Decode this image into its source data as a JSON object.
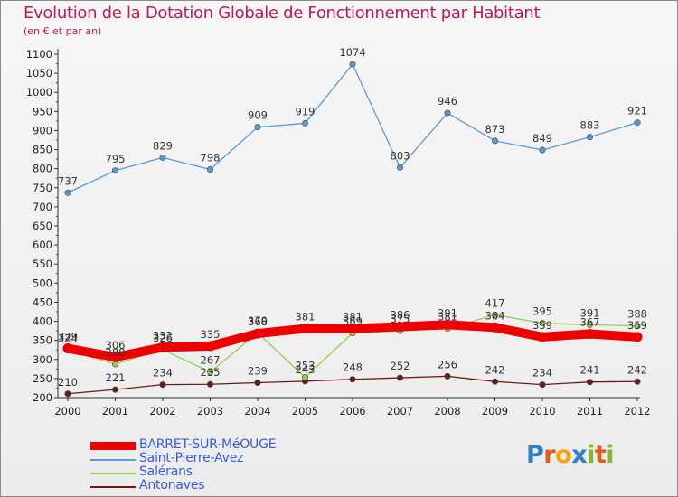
{
  "title": "Evolution de la Dotation Globale de Fonctionnement par Habitant",
  "subtitle": "(en € et par an)",
  "brand": {
    "letters": [
      "P",
      "r",
      "o",
      "x",
      "i",
      "t",
      "i"
    ],
    "colors": [
      "#2f80c8",
      "#e35a1d",
      "#f3a516",
      "#2f80c8",
      "#86b82d",
      "#e35a1d",
      "#86b82d"
    ]
  },
  "chart_data": {
    "type": "line",
    "title": "Evolution de la Dotation Globale de Fonctionnement par Habitant",
    "ylabel": "(en € et par an)",
    "xlabel": "",
    "ylim": [
      200,
      1100
    ],
    "ytick_step": 50,
    "grid": false,
    "legend_position": "bottom-left",
    "x": [
      "2000",
      "2001",
      "2002",
      "2003",
      "2004",
      "2005",
      "2006",
      "2007",
      "2008",
      "2009",
      "2010",
      "2011",
      "2012"
    ],
    "series": [
      {
        "name": "BARRET-SUR-MéOUGE",
        "values": [
          329,
          306,
          332,
          335,
          368,
          381,
          381,
          386,
          391,
          384,
          359,
          367,
          359
        ],
        "color": "#ee0000",
        "style": "thick"
      },
      {
        "name": "Saint-Pierre-Avez",
        "values": [
          737,
          795,
          829,
          798,
          909,
          919,
          1074,
          803,
          946,
          873,
          849,
          883,
          921
        ],
        "color": "#5b9bd5",
        "style": "thin"
      },
      {
        "name": "Salérans",
        "values": [
          324,
          288,
          326,
          267,
          370,
          253,
          369,
          375,
          381,
          417,
          395,
          391,
          388
        ],
        "color": "#92d050",
        "style": "thin"
      },
      {
        "name": "Antonaves",
        "values": [
          210,
          221,
          234,
          235,
          239,
          243,
          248,
          252,
          256,
          242,
          234,
          241,
          242
        ],
        "color": "#6b1a1a",
        "style": "thin"
      }
    ]
  }
}
